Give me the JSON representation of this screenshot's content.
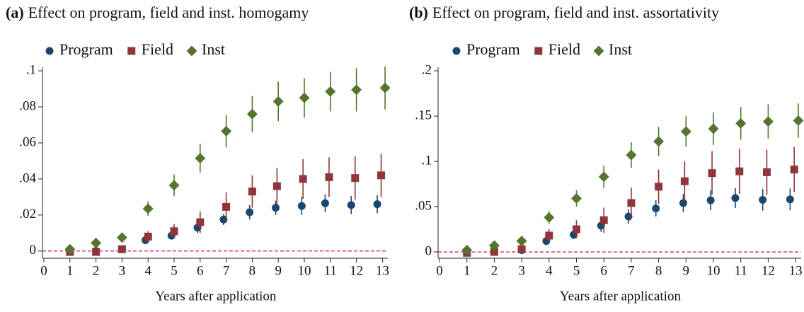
{
  "chart_data": [
    {
      "type": "scatter",
      "panel_label": "(a)",
      "title": "Effect on program, field and inst. homogamy",
      "xlabel": "Years after application",
      "xlim": [
        0,
        13.2
      ],
      "xticks": [
        0,
        1,
        2,
        3,
        4,
        5,
        6,
        7,
        8,
        9,
        10,
        11,
        12,
        13
      ],
      "ylim": [
        -0.004,
        0.102
      ],
      "yticks": [
        0,
        {
          "value": 0.02,
          "label": ".02"
        },
        {
          "value": 0.04,
          "label": ".04"
        },
        {
          "value": 0.06,
          "label": ".06"
        },
        {
          "value": 0.08,
          "label": ".08"
        },
        {
          "value": 0.1,
          "label": ".1"
        }
      ],
      "hline": {
        "value": 0,
        "color": "#c10534"
      },
      "series": [
        {
          "name": "Program",
          "color": "#1a476f",
          "marker": "circle",
          "x": [
            1,
            2,
            3,
            3.9,
            4.9,
            5.9,
            6.9,
            7.9,
            8.9,
            9.9,
            10.8,
            11.8,
            12.8
          ],
          "values": [
            0,
            0,
            0.001,
            0.006,
            0.0085,
            0.013,
            0.0175,
            0.0215,
            0.024,
            0.025,
            0.0265,
            0.0255,
            0.026
          ],
          "errors": [
            0.001,
            0.001,
            0.001,
            0.002,
            0.002,
            0.003,
            0.003,
            0.004,
            0.004,
            0.005,
            0.005,
            0.005,
            0.005
          ]
        },
        {
          "name": "Field",
          "color": "#90353b",
          "marker": "square",
          "x": [
            1,
            2,
            3,
            4,
            5,
            6,
            7,
            8,
            8.95,
            9.95,
            10.95,
            11.95,
            12.95
          ],
          "values": [
            -0.0005,
            -0.0005,
            0.001,
            0.008,
            0.011,
            0.016,
            0.0245,
            0.033,
            0.036,
            0.04,
            0.041,
            0.0405,
            0.042
          ],
          "errors": [
            0.001,
            0.001,
            0.002,
            0.003,
            0.004,
            0.006,
            0.008,
            0.009,
            0.01,
            0.011,
            0.011,
            0.012,
            0.012
          ]
        },
        {
          "name": "Inst",
          "color": "#55752f",
          "marker": "diamond",
          "x": [
            1,
            2,
            3,
            4,
            5,
            6,
            7,
            8,
            9,
            10,
            11,
            12,
            13.1
          ],
          "values": [
            0.001,
            0.0045,
            0.0075,
            0.0235,
            0.0365,
            0.0515,
            0.0665,
            0.076,
            0.083,
            0.085,
            0.0885,
            0.0895,
            0.0905
          ],
          "errors": [
            0.001,
            0.001,
            0.002,
            0.004,
            0.006,
            0.008,
            0.009,
            0.01,
            0.011,
            0.011,
            0.011,
            0.012,
            0.012
          ]
        }
      ]
    },
    {
      "type": "scatter",
      "panel_label": "(b)",
      "title": "Effect on program, field and inst. assortativity",
      "xlabel": "Years after application",
      "xlim": [
        0,
        13.2
      ],
      "xticks": [
        0,
        1,
        2,
        3,
        4,
        5,
        6,
        7,
        8,
        9,
        10,
        11,
        12,
        13
      ],
      "ylim": [
        -0.007,
        0.204
      ],
      "yticks": [
        0,
        {
          "value": 0.05,
          "label": ".05"
        },
        {
          "value": 0.1,
          "label": ".1"
        },
        {
          "value": 0.15,
          "label": ".15"
        },
        {
          "value": 0.2,
          "label": ".2"
        }
      ],
      "hline": {
        "value": 0,
        "color": "#c10534"
      },
      "series": [
        {
          "name": "Program",
          "color": "#1a476f",
          "marker": "circle",
          "x": [
            1,
            2,
            3,
            3.9,
            4.9,
            5.9,
            6.9,
            7.9,
            8.9,
            9.9,
            10.8,
            11.8,
            12.8
          ],
          "values": [
            0,
            0,
            0.002,
            0.012,
            0.019,
            0.029,
            0.039,
            0.048,
            0.054,
            0.057,
            0.0595,
            0.0575,
            0.058
          ],
          "errors": [
            0.001,
            0.001,
            0.002,
            0.004,
            0.005,
            0.007,
            0.008,
            0.009,
            0.01,
            0.011,
            0.011,
            0.012,
            0.012
          ]
        },
        {
          "name": "Field",
          "color": "#90353b",
          "marker": "square",
          "x": [
            1,
            2,
            3,
            4,
            5,
            6,
            7,
            8,
            8.95,
            9.95,
            10.95,
            11.95,
            12.95
          ],
          "values": [
            -0.001,
            0,
            0.003,
            0.018,
            0.025,
            0.035,
            0.054,
            0.072,
            0.078,
            0.087,
            0.089,
            0.088,
            0.091
          ],
          "errors": [
            0.001,
            0.001,
            0.003,
            0.007,
            0.01,
            0.014,
            0.017,
            0.019,
            0.022,
            0.024,
            0.025,
            0.025,
            0.025
          ]
        },
        {
          "name": "Inst",
          "color": "#55752f",
          "marker": "diamond",
          "x": [
            1,
            2,
            3,
            4,
            5,
            6,
            7,
            8,
            9,
            10,
            11,
            12,
            13.1
          ],
          "values": [
            0.002,
            0.007,
            0.012,
            0.038,
            0.059,
            0.083,
            0.107,
            0.122,
            0.133,
            0.136,
            0.142,
            0.144,
            0.145
          ],
          "errors": [
            0.001,
            0.002,
            0.003,
            0.007,
            0.009,
            0.012,
            0.014,
            0.016,
            0.017,
            0.018,
            0.018,
            0.019,
            0.019
          ]
        }
      ]
    }
  ]
}
